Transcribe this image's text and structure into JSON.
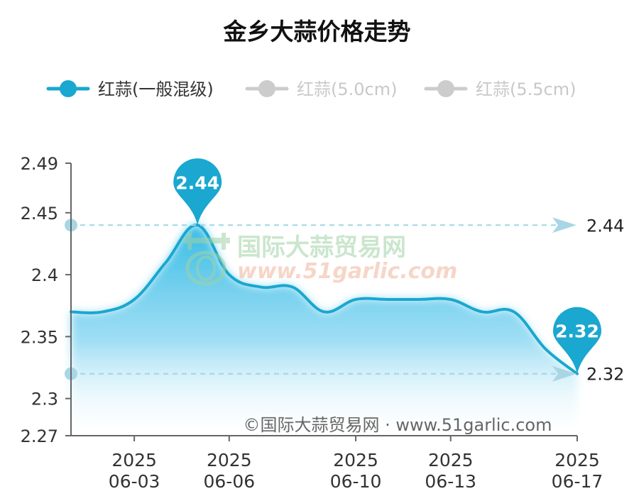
{
  "chart_data": {
    "type": "area",
    "title": "金乡大蒜价格走势",
    "legend": {
      "placement": "top-left",
      "items": [
        {
          "label": "红蒜(一般混级)",
          "active": true,
          "color": "#1aa7d0"
        },
        {
          "label": "红蒜(5.0cm)",
          "active": false,
          "color": "#cccccc"
        },
        {
          "label": "红蒜(5.5cm)",
          "active": false,
          "color": "#cccccc"
        }
      ]
    },
    "y_ticks": [
      "2.49",
      "2.45",
      "2.4",
      "2.35",
      "2.3",
      "2.27"
    ],
    "y_tick_values": [
      2.49,
      2.45,
      2.4,
      2.35,
      2.3,
      2.27
    ],
    "ylim": [
      2.27,
      2.49
    ],
    "x_ticks": [
      {
        "year": "2025",
        "date": "06-03",
        "index": 3
      },
      {
        "year": "2025",
        "date": "06-06",
        "index": 6
      },
      {
        "year": "2025",
        "date": "06-10",
        "index": 10
      },
      {
        "year": "2025",
        "date": "06-13",
        "index": 13
      },
      {
        "year": "2025",
        "date": "06-17",
        "index": 17
      }
    ],
    "series": [
      {
        "name": "红蒜(一般混级)",
        "color": "#1aa7d0",
        "x": [
          1,
          2,
          3,
          4,
          5,
          6,
          7,
          8,
          9,
          10,
          11,
          12,
          13,
          14,
          15,
          16,
          17
        ],
        "values": [
          2.37,
          2.37,
          2.38,
          2.41,
          2.44,
          2.4,
          2.39,
          2.39,
          2.37,
          2.38,
          2.38,
          2.38,
          2.38,
          2.37,
          2.37,
          2.34,
          2.32
        ]
      }
    ],
    "max_marker": {
      "index": 5,
      "value": 2.44,
      "label": "2.44"
    },
    "last_marker": {
      "index": 17,
      "value": 2.32,
      "label": "2.32"
    },
    "mark_lines": [
      {
        "value": 2.44,
        "label": "2.44"
      },
      {
        "value": 2.32,
        "label": "2.32"
      }
    ],
    "watermark": {
      "cn": "国际大蒜贸易网",
      "url": "www.51garlic.com"
    },
    "footer": "©国际大蒜贸易网 · www.51garlic.com",
    "grid": false
  }
}
